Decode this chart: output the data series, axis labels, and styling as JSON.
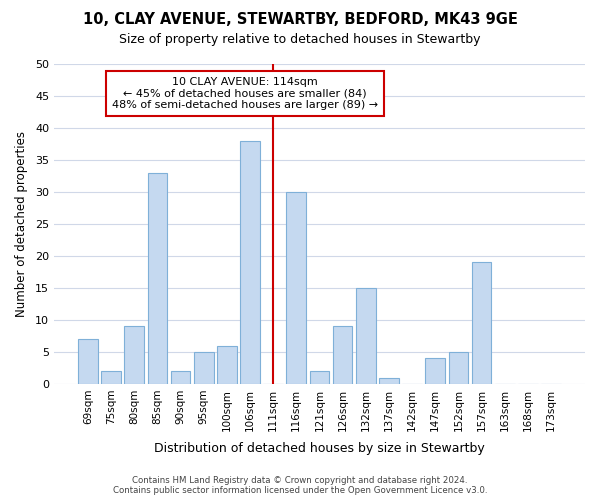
{
  "title": "10, CLAY AVENUE, STEWARTBY, BEDFORD, MK43 9GE",
  "subtitle": "Size of property relative to detached houses in Stewartby",
  "xlabel": "Distribution of detached houses by size in Stewartby",
  "ylabel": "Number of detached properties",
  "footnote1": "Contains HM Land Registry data © Crown copyright and database right 2024.",
  "footnote2": "Contains public sector information licensed under the Open Government Licence v3.0.",
  "bar_labels": [
    "69sqm",
    "75sqm",
    "80sqm",
    "85sqm",
    "90sqm",
    "95sqm",
    "100sqm",
    "106sqm",
    "111sqm",
    "116sqm",
    "121sqm",
    "126sqm",
    "132sqm",
    "137sqm",
    "142sqm",
    "147sqm",
    "152sqm",
    "157sqm",
    "163sqm",
    "168sqm",
    "173sqm"
  ],
  "bar_values": [
    7,
    2,
    9,
    33,
    2,
    5,
    6,
    38,
    0,
    30,
    2,
    9,
    15,
    1,
    0,
    4,
    5,
    19,
    0,
    0,
    0
  ],
  "ylim": [
    0,
    50
  ],
  "yticks": [
    0,
    5,
    10,
    15,
    20,
    25,
    30,
    35,
    40,
    45,
    50
  ],
  "bar_color": "#c5d9f0",
  "bar_edge_color": "#7fb0d8",
  "reference_line_x": 8.0,
  "reference_line_color": "#cc0000",
  "annotation_text_line1": "10 CLAY AVENUE: 114sqm",
  "annotation_text_line2": "← 45% of detached houses are smaller (84)",
  "annotation_text_line3": "48% of semi-detached houses are larger (89) →",
  "background_color": "#ffffff",
  "grid_color": "#d0d8e8"
}
